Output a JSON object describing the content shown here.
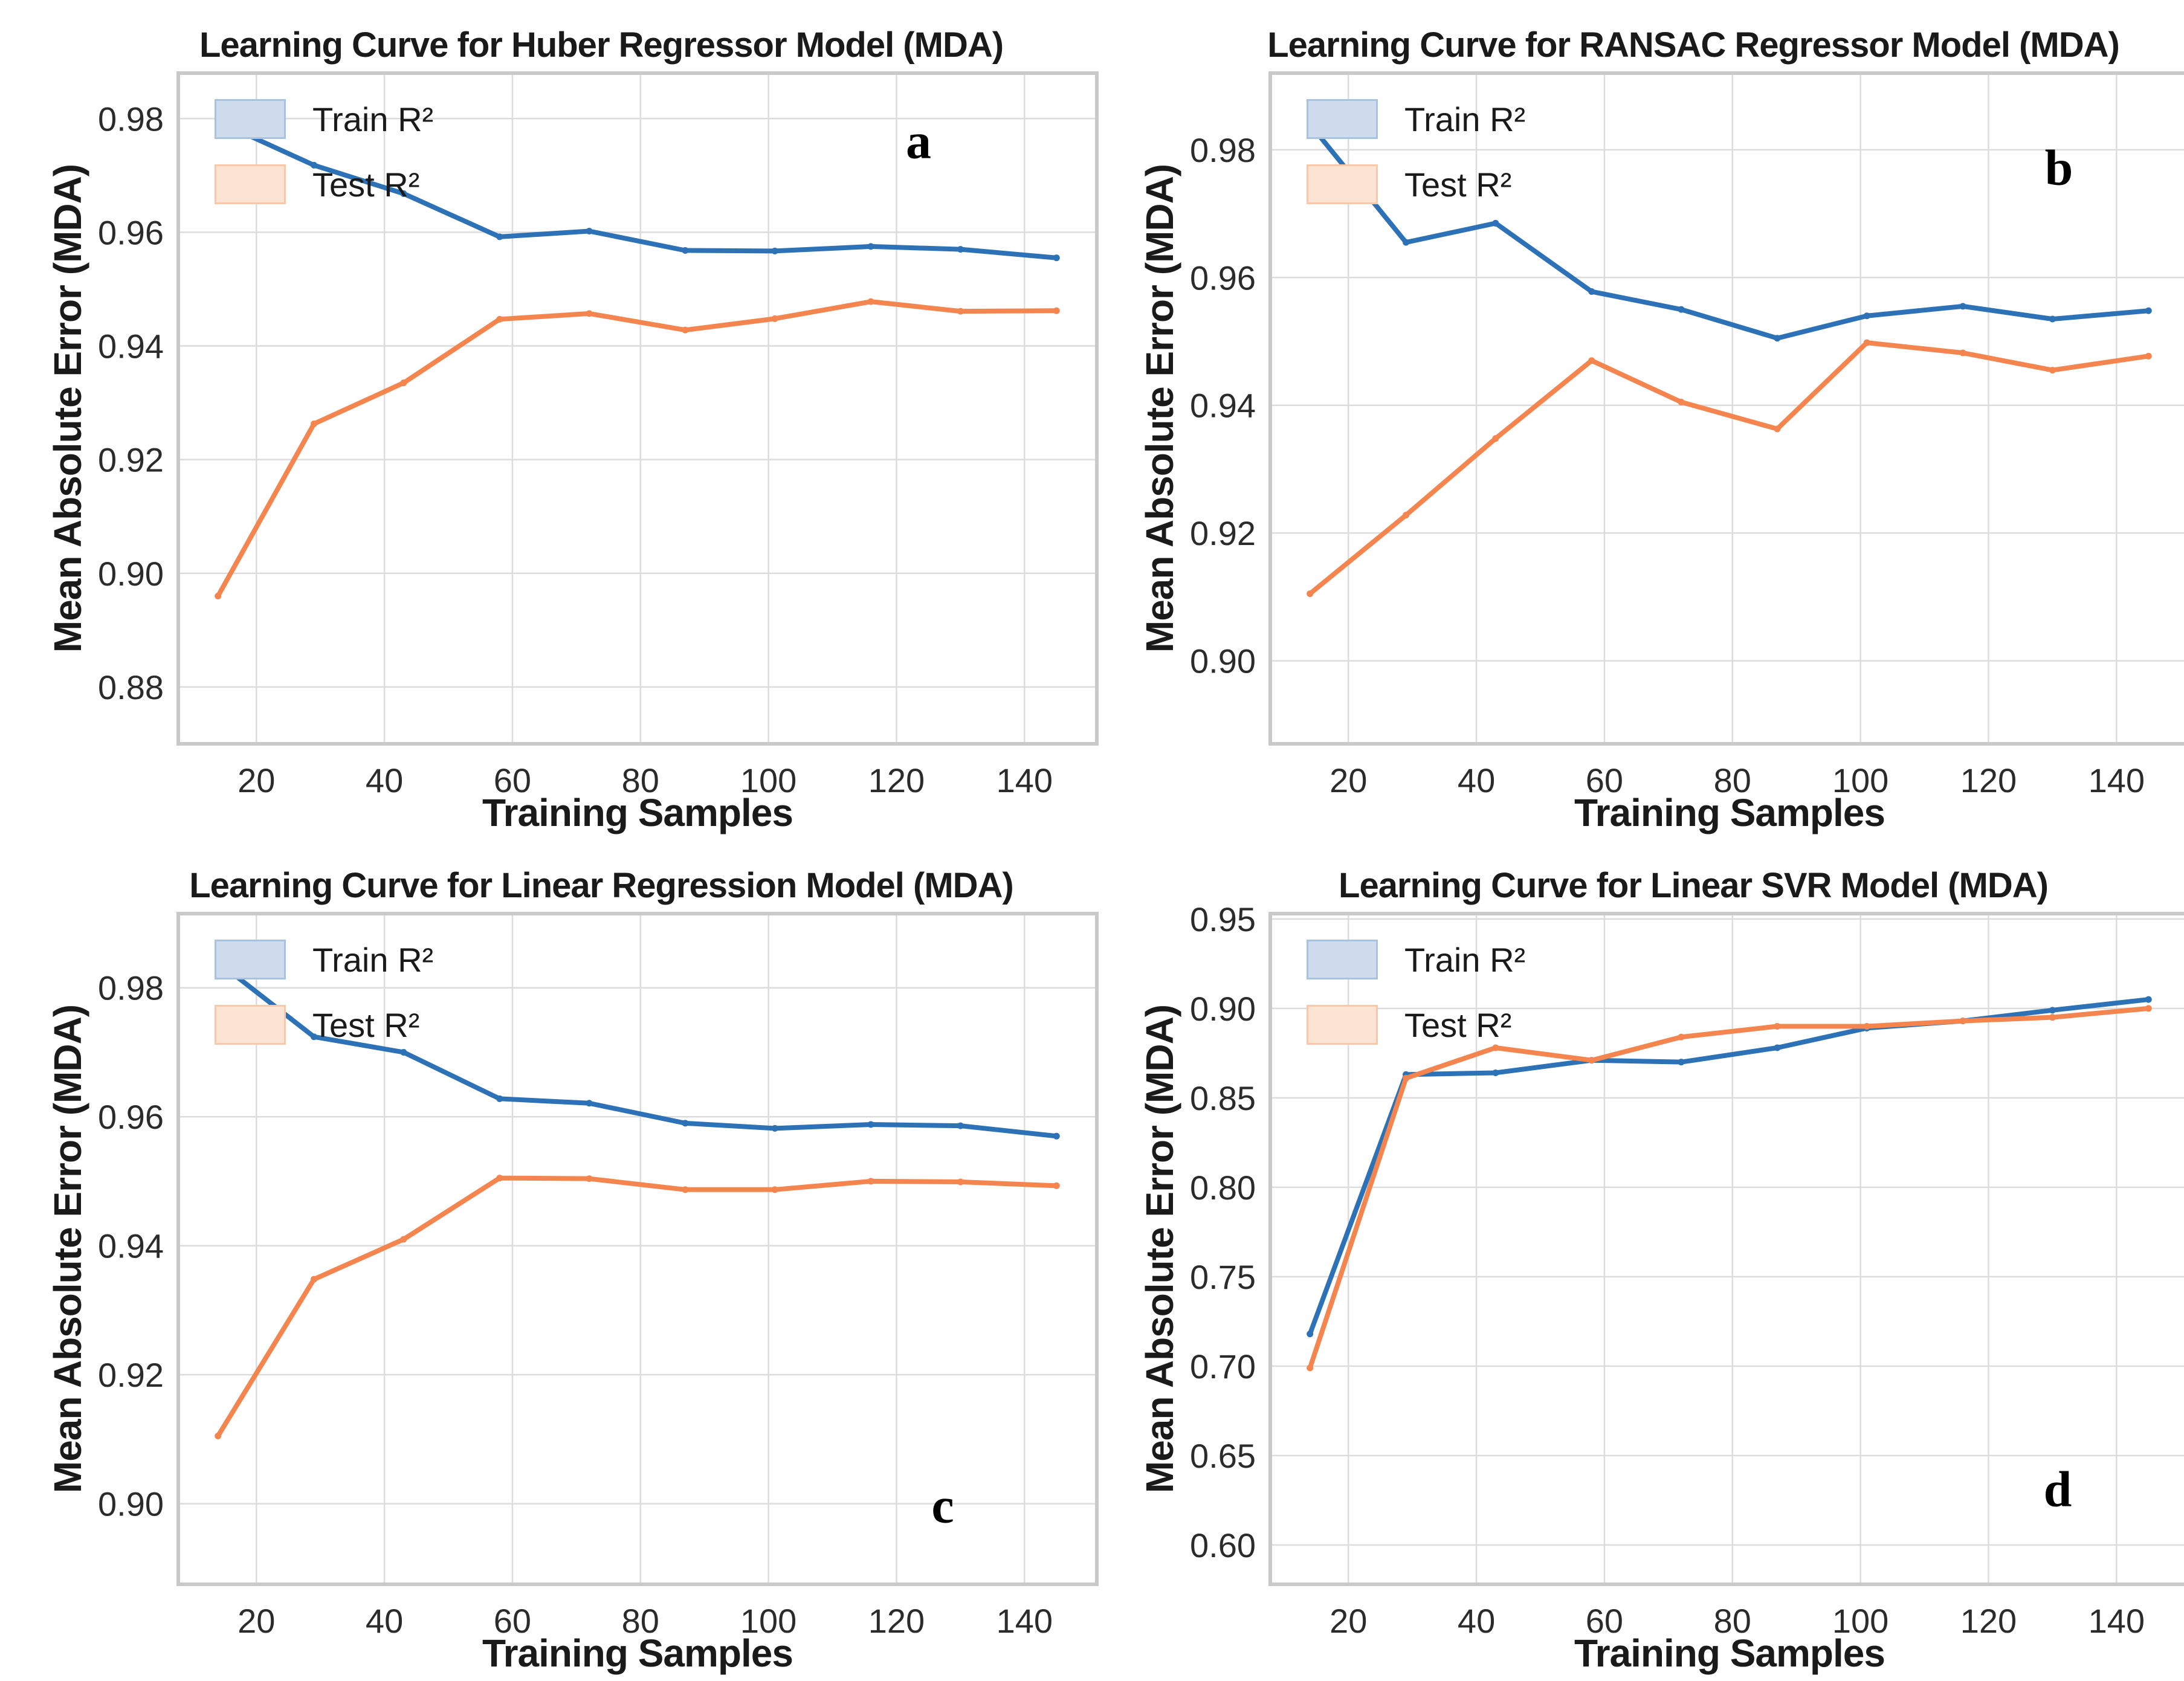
{
  "figure": {
    "xlabel": "Training Samples",
    "ylabel": "Mean Absolute Error (MDA)",
    "legend": {
      "train": "Train R²",
      "test": "Test R²"
    }
  },
  "colors": {
    "train_line": "#2d72b6",
    "test_line": "#f5854e",
    "legend_train_fill": "#cfdcee",
    "legend_train_border": "#a9c3df",
    "legend_test_fill": "#fde3d4",
    "legend_test_border": "#f8c8a8",
    "grid": "#dcdcdc",
    "spine": "#c9c9c9",
    "tick_text": "#2b2b2b"
  },
  "chart_data": [
    {
      "type": "line",
      "panel_letter": "a",
      "title": "Learning Curve for Huber Regressor Model (MDA)",
      "xlabel": "Training Samples",
      "ylabel": "Mean Absolute Error (MDA)",
      "legend": [
        "Train R²",
        "Test R²"
      ],
      "legend_position": "upper left",
      "grid": true,
      "x": [
        14,
        29,
        43,
        58,
        72,
        87,
        101,
        116,
        130,
        145
      ],
      "series": [
        {
          "name": "Train R²",
          "color_key": "train_line",
          "values": [
            0.9795,
            0.9718,
            0.9668,
            0.9592,
            0.9602,
            0.9568,
            0.9567,
            0.9575,
            0.957,
            0.9555
          ]
        },
        {
          "name": "Test R²",
          "color_key": "test_line",
          "values": [
            0.896,
            0.9263,
            0.9335,
            0.9447,
            0.9457,
            0.9428,
            0.9448,
            0.9478,
            0.9461,
            0.9462
          ]
        }
      ],
      "xlim": [
        7.8,
        151.3
      ],
      "ylim": [
        0.87,
        0.988
      ],
      "xticks": [
        20,
        40,
        60,
        80,
        100,
        120,
        140
      ],
      "xtick_labels": [
        "20",
        "40",
        "60",
        "80",
        "100",
        "120",
        "140"
      ],
      "yticks": [
        0.88,
        0.9,
        0.92,
        0.94,
        0.96,
        0.98
      ],
      "ytick_labels": [
        "0.88",
        "0.90",
        "0.92",
        "0.94",
        "0.96",
        "0.98"
      ]
    },
    {
      "type": "line",
      "panel_letter": "b",
      "title": "Learning Curve for RANSAC Regressor Model (MDA)",
      "xlabel": "Training Samples",
      "ylabel": "Mean Absolute Error (MDA)",
      "legend": [
        "Train R²",
        "Test R²"
      ],
      "legend_position": "upper left",
      "grid": true,
      "x": [
        14,
        29,
        43,
        58,
        72,
        87,
        101,
        116,
        130,
        145
      ],
      "series": [
        {
          "name": "Train R²",
          "color_key": "train_line",
          "values": [
            0.984,
            0.9655,
            0.9685,
            0.9578,
            0.955,
            0.9505,
            0.954,
            0.9555,
            0.9535,
            0.9548
          ]
        },
        {
          "name": "Test R²",
          "color_key": "test_line",
          "values": [
            0.9105,
            0.9228,
            0.9348,
            0.947,
            0.9405,
            0.9363,
            0.9498,
            0.9482,
            0.9455,
            0.9477
          ]
        }
      ],
      "xlim": [
        7.8,
        151.3
      ],
      "ylim": [
        0.887,
        0.992
      ],
      "xticks": [
        20,
        40,
        60,
        80,
        100,
        120,
        140
      ],
      "xtick_labels": [
        "20",
        "40",
        "60",
        "80",
        "100",
        "120",
        "140"
      ],
      "yticks": [
        0.9,
        0.92,
        0.94,
        0.96,
        0.98
      ],
      "ytick_labels": [
        "0.90",
        "0.92",
        "0.94",
        "0.96",
        "0.98"
      ]
    },
    {
      "type": "line",
      "panel_letter": "c",
      "title": "Learning Curve for Linear Regression Model (MDA)",
      "xlabel": "Training Samples",
      "ylabel": "Mean Absolute Error (MDA)",
      "legend": [
        "Train R²",
        "Test R²"
      ],
      "legend_position": "upper left",
      "grid": true,
      "x": [
        14,
        29,
        43,
        58,
        72,
        87,
        101,
        116,
        130,
        145
      ],
      "series": [
        {
          "name": "Train R²",
          "color_key": "train_line",
          "values": [
            0.984,
            0.9724,
            0.97,
            0.9628,
            0.9621,
            0.959,
            0.9582,
            0.9588,
            0.9586,
            0.957
          ]
        },
        {
          "name": "Test R²",
          "color_key": "test_line",
          "values": [
            0.9105,
            0.9348,
            0.941,
            0.9505,
            0.9504,
            0.9487,
            0.9487,
            0.95,
            0.9499,
            0.9493
          ]
        }
      ],
      "xlim": [
        7.8,
        151.3
      ],
      "ylim": [
        0.8875,
        0.9915
      ],
      "xticks": [
        20,
        40,
        60,
        80,
        100,
        120,
        140
      ],
      "xtick_labels": [
        "20",
        "40",
        "60",
        "80",
        "100",
        "120",
        "140"
      ],
      "yticks": [
        0.9,
        0.92,
        0.94,
        0.96,
        0.98
      ],
      "ytick_labels": [
        "0.90",
        "0.92",
        "0.94",
        "0.96",
        "0.98"
      ]
    },
    {
      "type": "line",
      "panel_letter": "d",
      "title": "Learning Curve for Linear SVR Model (MDA)",
      "xlabel": "Training Samples",
      "ylabel": "Mean Absolute Error (MDA)",
      "legend": [
        "Train R²",
        "Test R²"
      ],
      "legend_position": "upper left",
      "grid": true,
      "x": [
        14,
        29,
        43,
        58,
        72,
        87,
        101,
        116,
        130,
        145
      ],
      "series": [
        {
          "name": "Train R²",
          "color_key": "train_line",
          "values": [
            0.718,
            0.863,
            0.864,
            0.871,
            0.87,
            0.878,
            0.889,
            0.893,
            0.899,
            0.905
          ]
        },
        {
          "name": "Test R²",
          "color_key": "test_line",
          "values": [
            0.699,
            0.861,
            0.878,
            0.871,
            0.884,
            0.89,
            0.89,
            0.893,
            0.895,
            0.9
          ]
        }
      ],
      "xlim": [
        7.8,
        151.3
      ],
      "ylim": [
        0.578,
        0.953
      ],
      "xticks": [
        20,
        40,
        60,
        80,
        100,
        120,
        140
      ],
      "xtick_labels": [
        "20",
        "40",
        "60",
        "80",
        "100",
        "120",
        "140"
      ],
      "yticks": [
        0.6,
        0.65,
        0.7,
        0.75,
        0.8,
        0.85,
        0.9,
        0.95
      ],
      "ytick_labels": [
        "0.60",
        "0.65",
        "0.70",
        "0.75",
        "0.80",
        "0.85",
        "0.90",
        "0.95"
      ]
    }
  ]
}
